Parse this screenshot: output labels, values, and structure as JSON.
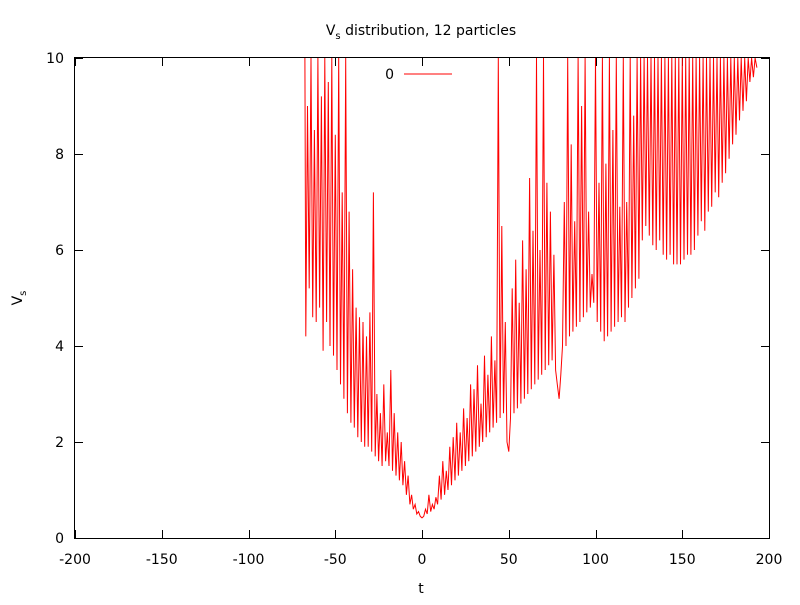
{
  "chart_data": {
    "type": "line",
    "title": {
      "main": "V",
      "sub": "s",
      "rest": " distribution, 12 particles"
    },
    "xlabel": "t",
    "ylabel": {
      "main": "V",
      "sub": "s"
    },
    "xlim": [
      -200,
      200
    ],
    "ylim": [
      0,
      10
    ],
    "xticks": [
      -200,
      -150,
      -100,
      -50,
      0,
      50,
      100,
      150,
      200
    ],
    "yticks": [
      0,
      2,
      4,
      6,
      8,
      10
    ],
    "xtick_labels": [
      "-200",
      "-150",
      "-100",
      "-50",
      "0",
      "50",
      "100",
      "150",
      "200"
    ],
    "ytick_labels": [
      "0",
      "2",
      "4",
      "6",
      "8",
      "10"
    ],
    "grid": false,
    "legend": {
      "placement": "top-center",
      "entries": [
        {
          "label": "0",
          "color": "#ff0000"
        }
      ]
    },
    "series": [
      {
        "name": "0",
        "color": "#ff0000",
        "points": [
          [
            -67.5,
            10
          ],
          [
            -67,
            4.2
          ],
          [
            -66,
            9
          ],
          [
            -65,
            5.2
          ],
          [
            -64,
            10
          ],
          [
            -63,
            4.6
          ],
          [
            -62,
            8.5
          ],
          [
            -61,
            4.5
          ],
          [
            -60,
            10
          ],
          [
            -59,
            4.8
          ],
          [
            -58,
            9.2
          ],
          [
            -57,
            3.9
          ],
          [
            -56,
            10
          ],
          [
            -55,
            4.5
          ],
          [
            -54,
            9.5
          ],
          [
            -53,
            4.0
          ],
          [
            -52,
            10
          ],
          [
            -51,
            3.8
          ],
          [
            -50,
            8.4
          ],
          [
            -49,
            3.5
          ],
          [
            -48,
            10
          ],
          [
            -47,
            3.2
          ],
          [
            -46,
            7.2
          ],
          [
            -45,
            2.9
          ],
          [
            -44,
            10
          ],
          [
            -43,
            2.6
          ],
          [
            -42,
            6.8
          ],
          [
            -41,
            2.4
          ],
          [
            -40,
            5.6
          ],
          [
            -39,
            2.3
          ],
          [
            -38,
            4.8
          ],
          [
            -37,
            2.1
          ],
          [
            -36,
            4.6
          ],
          [
            -35,
            2.0
          ],
          [
            -34,
            4.5
          ],
          [
            -33,
            1.9
          ],
          [
            -32,
            4.2
          ],
          [
            -31,
            1.9
          ],
          [
            -30,
            4.7
          ],
          [
            -29,
            1.8
          ],
          [
            -28,
            7.2
          ],
          [
            -27,
            1.7
          ],
          [
            -26,
            3.0
          ],
          [
            -25,
            1.6
          ],
          [
            -24,
            2.6
          ],
          [
            -23,
            1.5
          ],
          [
            -22,
            3.2
          ],
          [
            -21,
            1.6
          ],
          [
            -20,
            2.2
          ],
          [
            -19,
            1.5
          ],
          [
            -18,
            3.5
          ],
          [
            -17,
            1.4
          ],
          [
            -16,
            2.6
          ],
          [
            -15,
            1.3
          ],
          [
            -14,
            2.2
          ],
          [
            -13,
            1.2
          ],
          [
            -12,
            2.0
          ],
          [
            -11,
            1.1
          ],
          [
            -10,
            1.6
          ],
          [
            -9,
            0.9
          ],
          [
            -8,
            1.3
          ],
          [
            -7,
            0.7
          ],
          [
            -6,
            0.9
          ],
          [
            -5,
            0.6
          ],
          [
            -4,
            0.7
          ],
          [
            -3,
            0.5
          ],
          [
            -2,
            0.55
          ],
          [
            -1,
            0.45
          ],
          [
            0,
            0.42
          ],
          [
            1,
            0.45
          ],
          [
            2,
            0.6
          ],
          [
            3,
            0.5
          ],
          [
            4,
            0.9
          ],
          [
            5,
            0.55
          ],
          [
            6,
            0.7
          ],
          [
            7,
            0.6
          ],
          [
            8,
            0.85
          ],
          [
            9,
            0.7
          ],
          [
            10,
            1.3
          ],
          [
            11,
            0.8
          ],
          [
            12,
            1.6
          ],
          [
            13,
            0.9
          ],
          [
            14,
            1.4
          ],
          [
            15,
            1.0
          ],
          [
            16,
            1.9
          ],
          [
            17,
            1.1
          ],
          [
            18,
            2.1
          ],
          [
            19,
            1.2
          ],
          [
            20,
            2.4
          ],
          [
            21,
            1.3
          ],
          [
            22,
            2.2
          ],
          [
            23,
            1.4
          ],
          [
            24,
            2.7
          ],
          [
            25,
            1.5
          ],
          [
            26,
            2.5
          ],
          [
            27,
            1.6
          ],
          [
            28,
            3.2
          ],
          [
            29,
            1.7
          ],
          [
            30,
            3.1
          ],
          [
            31,
            1.8
          ],
          [
            32,
            3.6
          ],
          [
            33,
            1.9
          ],
          [
            34,
            2.8
          ],
          [
            35,
            2.0
          ],
          [
            36,
            3.8
          ],
          [
            37,
            2.1
          ],
          [
            38,
            3.4
          ],
          [
            39,
            2.2
          ],
          [
            40,
            4.2
          ],
          [
            41,
            2.3
          ],
          [
            42,
            3.7
          ],
          [
            43,
            2.4
          ],
          [
            44,
            10
          ],
          [
            45,
            2.5
          ],
          [
            46,
            6.5
          ],
          [
            47,
            2.6
          ],
          [
            48,
            4.5
          ],
          [
            49,
            2.0
          ],
          [
            50,
            1.8
          ],
          [
            51,
            2.5
          ],
          [
            52,
            5.2
          ],
          [
            53,
            2.6
          ],
          [
            54,
            5.8
          ],
          [
            55,
            2.7
          ],
          [
            56,
            4.9
          ],
          [
            57,
            2.8
          ],
          [
            58,
            6.2
          ],
          [
            59,
            2.9
          ],
          [
            60,
            5.6
          ],
          [
            61,
            3.0
          ],
          [
            62,
            7.5
          ],
          [
            63,
            3.1
          ],
          [
            64,
            6.4
          ],
          [
            65,
            3.2
          ],
          [
            66,
            10
          ],
          [
            67,
            3.3
          ],
          [
            68,
            6.0
          ],
          [
            69,
            3.4
          ],
          [
            70,
            10
          ],
          [
            71,
            3.5
          ],
          [
            72,
            7.4
          ],
          [
            73,
            3.6
          ],
          [
            74,
            6.8
          ],
          [
            75,
            3.7
          ],
          [
            76,
            5.9
          ],
          [
            77,
            3.5
          ],
          [
            78,
            3.2
          ],
          [
            79,
            2.9
          ],
          [
            80,
            3.4
          ],
          [
            81,
            4.0
          ],
          [
            82,
            7.0
          ],
          [
            83,
            4.0
          ],
          [
            84,
            10
          ],
          [
            85,
            4.2
          ],
          [
            86,
            8.2
          ],
          [
            87,
            4.3
          ],
          [
            88,
            6.6
          ],
          [
            89,
            4.4
          ],
          [
            90,
            10
          ],
          [
            91,
            4.5
          ],
          [
            92,
            9.0
          ],
          [
            93,
            4.6
          ],
          [
            94,
            10
          ],
          [
            95,
            4.7
          ],
          [
            96,
            6.8
          ],
          [
            97,
            4.8
          ],
          [
            98,
            5.5
          ],
          [
            99,
            4.9
          ],
          [
            100,
            10
          ],
          [
            101,
            4.5
          ],
          [
            102,
            7.4
          ],
          [
            103,
            4.3
          ],
          [
            104,
            10
          ],
          [
            105,
            4.1
          ],
          [
            106,
            7.8
          ],
          [
            107,
            4.2
          ],
          [
            108,
            10
          ],
          [
            109,
            4.3
          ],
          [
            110,
            8.5
          ],
          [
            111,
            4.4
          ],
          [
            112,
            10
          ],
          [
            113,
            4.5
          ],
          [
            114,
            6.9
          ],
          [
            115,
            4.6
          ],
          [
            116,
            10
          ],
          [
            117,
            4.5
          ],
          [
            118,
            7.0
          ],
          [
            119,
            4.8
          ],
          [
            120,
            10
          ],
          [
            121,
            5.0
          ],
          [
            122,
            8.8
          ],
          [
            123,
            5.2
          ],
          [
            124,
            10
          ],
          [
            125,
            5.4
          ],
          [
            126,
            10
          ],
          [
            127,
            6.2
          ],
          [
            128,
            10
          ],
          [
            129,
            6.5
          ],
          [
            130,
            10
          ],
          [
            131,
            6.3
          ],
          [
            132,
            10
          ],
          [
            133,
            6.1
          ],
          [
            134,
            10
          ],
          [
            135,
            6.0
          ],
          [
            136,
            10
          ],
          [
            137,
            6.2
          ],
          [
            138,
            10
          ],
          [
            139,
            5.9
          ],
          [
            140,
            10
          ],
          [
            141,
            5.8
          ],
          [
            142,
            10
          ],
          [
            143,
            5.9
          ],
          [
            144,
            10
          ],
          [
            145,
            5.7
          ],
          [
            146,
            10
          ],
          [
            147,
            5.7
          ],
          [
            148,
            10
          ],
          [
            149,
            5.7
          ],
          [
            150,
            10
          ],
          [
            151,
            5.8
          ],
          [
            152,
            10
          ],
          [
            153,
            5.9
          ],
          [
            154,
            10
          ],
          [
            155,
            5.9
          ],
          [
            156,
            10
          ],
          [
            157,
            6.0
          ],
          [
            158,
            10
          ],
          [
            159,
            6.3
          ],
          [
            160,
            10
          ],
          [
            161,
            6.6
          ],
          [
            162,
            10
          ],
          [
            163,
            6.4
          ],
          [
            164,
            10
          ],
          [
            165,
            6.8
          ],
          [
            166,
            10
          ],
          [
            167,
            6.9
          ],
          [
            168,
            10
          ],
          [
            169,
            7.2
          ],
          [
            170,
            10
          ],
          [
            171,
            7.1
          ],
          [
            172,
            10
          ],
          [
            173,
            7.4
          ],
          [
            174,
            10
          ],
          [
            175,
            7.6
          ],
          [
            176,
            10
          ],
          [
            177,
            7.9
          ],
          [
            178,
            10
          ],
          [
            179,
            8.2
          ],
          [
            180,
            10
          ],
          [
            181,
            8.4
          ],
          [
            182,
            10
          ],
          [
            183,
            8.7
          ],
          [
            184,
            10
          ],
          [
            185,
            8.9
          ],
          [
            186,
            10
          ],
          [
            187,
            9.1
          ],
          [
            188,
            10
          ],
          [
            189,
            9.5
          ],
          [
            190,
            10
          ],
          [
            191,
            9.6
          ],
          [
            192,
            10
          ],
          [
            193,
            9.8
          ]
        ]
      }
    ]
  }
}
